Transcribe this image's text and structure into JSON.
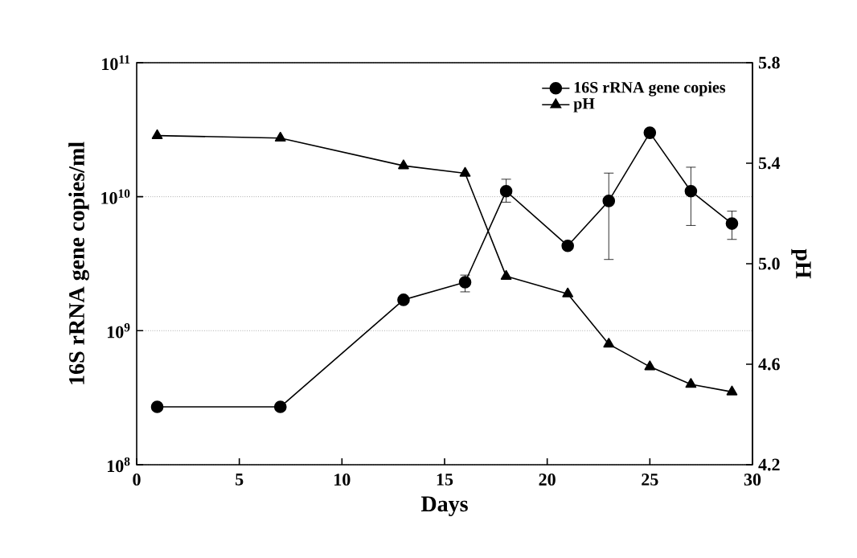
{
  "chart_data": {
    "type": "line",
    "xlabel": "Days",
    "ylabel": "16S rRNA gene copies/ml",
    "y2label": "pH",
    "x": [
      1,
      7,
      13,
      16,
      18,
      21,
      23,
      25,
      27,
      29
    ],
    "series": [
      {
        "name": "16S rRNA gene copies",
        "color": "#000000",
        "marker": "circle",
        "axis": "y",
        "values": [
          270000000.0,
          270000000.0,
          1700000000.0,
          2300000000.0,
          11000000000.0,
          4300000000.0,
          9300000000.0,
          30000000000.0,
          11000000000.0,
          6300000000.0
        ],
        "errors": [
          null,
          null,
          null,
          [
            1950000000.0,
            2600000000.0
          ],
          [
            9100000000.0,
            13500000000.0
          ],
          null,
          [
            3400000000.0,
            15000000000.0
          ],
          null,
          [
            6100000000.0,
            16600000000.0
          ],
          [
            4800000000.0,
            7800000000.0
          ]
        ]
      },
      {
        "name": "pH",
        "color": "#000000",
        "marker": "triangle",
        "axis": "y2",
        "values": [
          5.51,
          5.5,
          5.39,
          5.36,
          4.95,
          4.88,
          4.68,
          4.59,
          4.52,
          4.49
        ]
      }
    ],
    "xlim": [
      0,
      30
    ],
    "xticks": [
      0,
      5,
      10,
      15,
      20,
      25,
      30
    ],
    "log": "y",
    "ylim": [
      100000000.0,
      100000000000.0
    ],
    "yticks": [
      {
        "value": 100000000.0,
        "label": "10$^{8}$"
      },
      {
        "value": 1000000000.0,
        "label": "10$^{9}$"
      },
      {
        "value": 10000000000.0,
        "label": "10$^{10}$"
      },
      {
        "value": 100000000000.0,
        "label": "10$^{11}$"
      }
    ],
    "y2lim": [
      4.2,
      5.8
    ],
    "y2ticks": [
      {
        "value": 4.2,
        "label": "4.2"
      },
      {
        "value": 4.6,
        "label": "4.6"
      },
      {
        "value": 5.0,
        "label": "5.0"
      },
      {
        "value": 5.4,
        "label": "5.4"
      },
      {
        "value": 5.8,
        "label": "5.8"
      }
    ],
    "grid": "y",
    "legend": "top right",
    "line_style": "solid"
  }
}
